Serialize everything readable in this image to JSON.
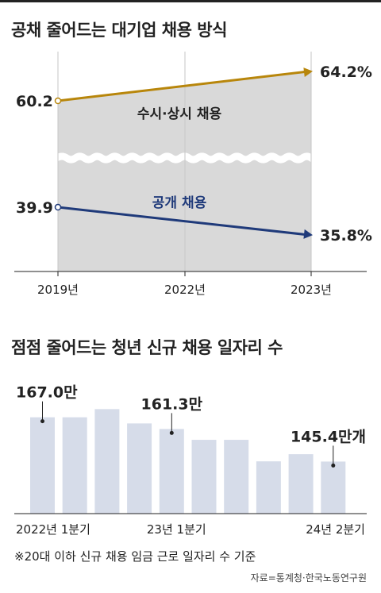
{
  "chart1": {
    "title": "공채 줄어드는 대기업 채용 방식",
    "chart_data": {
      "type": "line",
      "x": [
        "2019년",
        "2022년",
        "2023년"
      ],
      "series": [
        {
          "name": "수시·상시 채용",
          "values": [
            60.2,
            null,
            64.2
          ],
          "color": "#b8860b",
          "start_label": "60.2",
          "end_label": "64.2%"
        },
        {
          "name": "공개 채용",
          "values": [
            39.9,
            null,
            35.8
          ],
          "color": "#1f3a7a",
          "start_label": "39.9",
          "end_label": "35.8%"
        }
      ],
      "fill_color": "#d9d9d9",
      "axis_break": true
    }
  },
  "chart2": {
    "title": "점점 줄어드는 청년 신규 채용 일자리 수",
    "chart_data": {
      "type": "bar",
      "values": [
        167.0,
        167.0,
        171.0,
        164.0,
        161.3,
        156.0,
        156.0,
        145.5,
        149.0,
        145.4
      ],
      "ylim": [
        120,
        175
      ],
      "tick_labels": [
        {
          "index": 0,
          "text": "2022년 1분기"
        },
        {
          "index": 4,
          "text": "23년 1분기"
        },
        {
          "index": 9,
          "text": "24년 2분기"
        }
      ],
      "annotations": [
        {
          "index": 0,
          "text": "167.0만"
        },
        {
          "index": 4,
          "text": "161.3만"
        },
        {
          "index": 9,
          "text": "145.4만개"
        }
      ],
      "bar_color": "#d6dce9"
    }
  },
  "footer": {
    "note": "※20대 이하 신규 채용 임금 근로 일자리 수 기준",
    "source": "자료=통계청·한국노동연구원"
  }
}
